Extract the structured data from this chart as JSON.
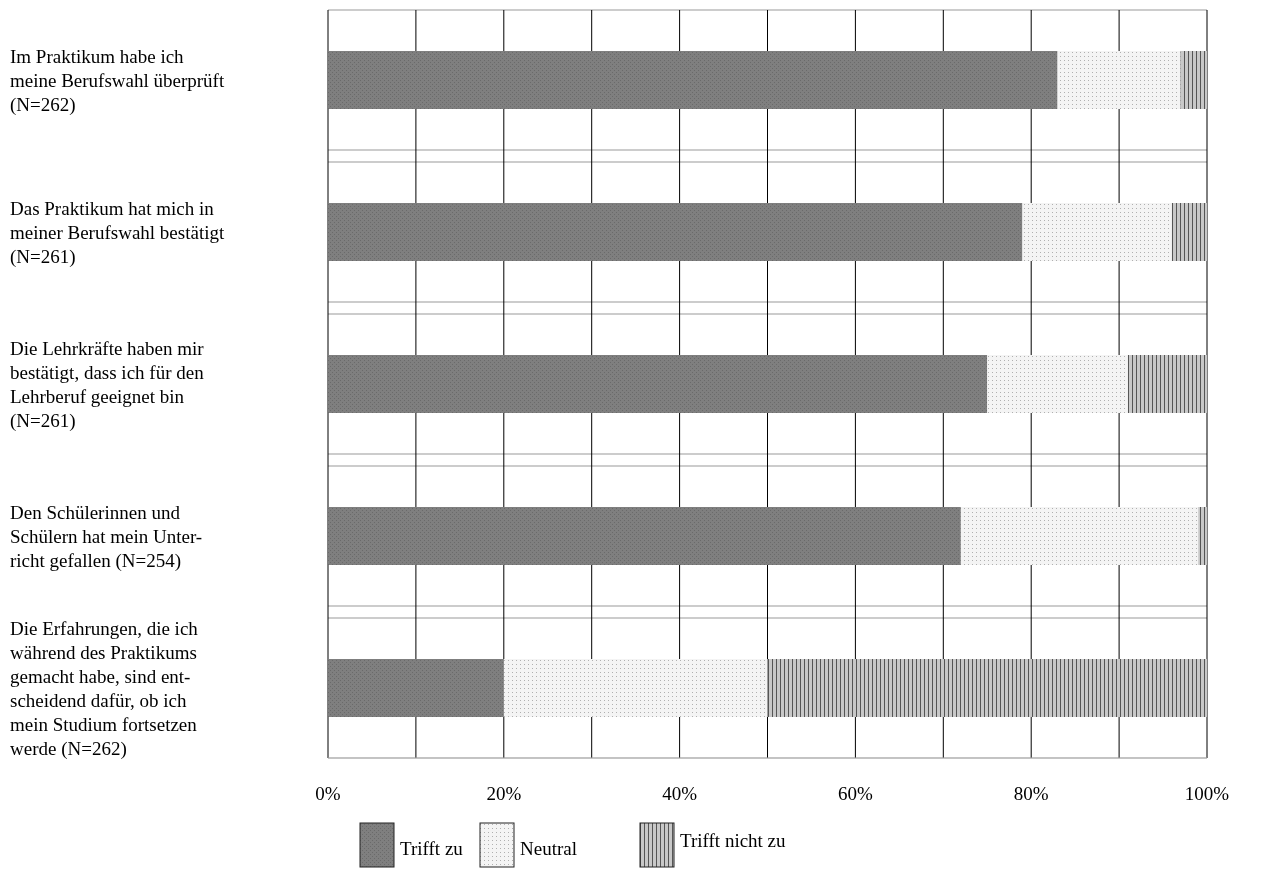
{
  "chart_data": {
    "type": "bar",
    "orientation": "horizontal",
    "stacked": true,
    "categories": [
      "Im Praktikum habe ich\nmeine Berufswahl überprüft\n(N=262)",
      "Das Praktikum hat mich in\nmeiner Berufswahl bestätigt\n(N=261)",
      "Die Lehrkräfte haben mir\nbestätigt, dass ich für den\nLehrberuf geeignet bin\n(N=261)",
      "Den Schülerinnen und\nSchülern hat mein Unter-\nricht gefallen (N=254)",
      "Die Erfahrungen, die ich\nwährend des Praktikums\ngemacht habe, sind ent-\nscheidend dafür, ob ich\nmein Studium fortsetzen\nwerde (N=262)"
    ],
    "series": [
      {
        "name": "Trifft zu",
        "color": "#7f7f7f",
        "values": [
          83,
          79,
          75,
          72,
          20
        ]
      },
      {
        "name": "Neutral",
        "color": "#f4f4f4",
        "values": [
          14,
          17,
          16,
          27,
          30
        ]
      },
      {
        "name": "Trifft nicht zu",
        "color": "#c8c8c8",
        "values": [
          3,
          4,
          9,
          1,
          50
        ]
      }
    ],
    "xlim": [
      0,
      100
    ],
    "xticks": [
      {
        "value": 0,
        "label": "0%"
      },
      {
        "value": 10,
        "label": null
      },
      {
        "value": 20,
        "label": "20%"
      },
      {
        "value": 30,
        "label": null
      },
      {
        "value": 40,
        "label": "40%"
      },
      {
        "value": 50,
        "label": null
      },
      {
        "value": 60,
        "label": "60%"
      },
      {
        "value": 70,
        "label": null
      },
      {
        "value": 80,
        "label": "80%"
      },
      {
        "value": 90,
        "label": null
      },
      {
        "value": 100,
        "label": "100%"
      }
    ],
    "grid": true,
    "legend": "bottom"
  }
}
